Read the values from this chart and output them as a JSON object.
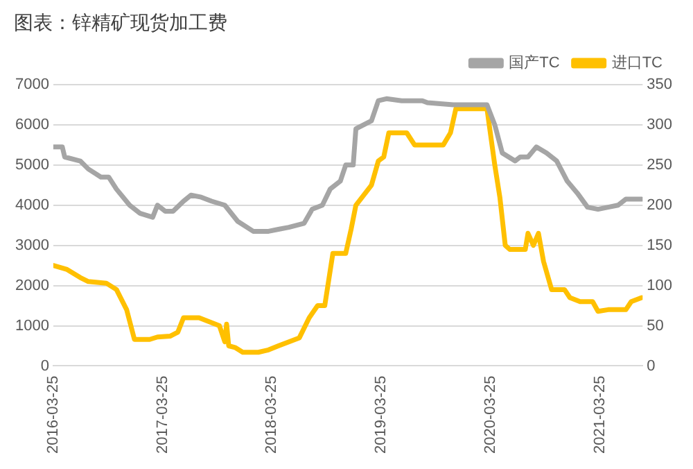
{
  "chart_data": {
    "type": "line",
    "title": "图表：锌精矿现货加工费",
    "legend": "top",
    "grid": "y",
    "marker": "none",
    "line_style": "solid",
    "xlim": [
      "2016-03-25",
      "2021-08-15"
    ],
    "xticks": [
      "2016-03-25",
      "2017-03-25",
      "2018-03-25",
      "2019-03-25",
      "2020-03-25",
      "2021-03-25"
    ],
    "ylim": [
      0,
      7000
    ],
    "yticks": [
      0,
      1000,
      2000,
      3000,
      4000,
      5000,
      6000,
      7000
    ],
    "y2lim": [
      0,
      350
    ],
    "y2ticks": [
      0,
      50,
      100,
      150,
      200,
      250,
      300,
      350
    ],
    "series": [
      {
        "name": "国产TC",
        "color": "#a5a5a5",
        "x": [
          "2016-03-25",
          "2016-04-24",
          "2016-05-02",
          "2016-06-23",
          "2016-07-20",
          "2016-08-31",
          "2016-09-26",
          "2016-10-22",
          "2016-12-05",
          "2017-01-08",
          "2017-02-20",
          "2017-03-08",
          "2017-04-03",
          "2017-04-29",
          "2017-06-03",
          "2017-06-28",
          "2017-08-01",
          "2017-09-05",
          "2017-10-19",
          "2017-12-01",
          "2018-01-22",
          "2018-03-14",
          "2018-04-16",
          "2018-05-21",
          "2018-07-11",
          "2018-08-07",
          "2018-09-10",
          "2018-10-06",
          "2018-11-09",
          "2018-11-27",
          "2018-12-22",
          "2018-12-31",
          "2019-02-21",
          "2019-03-16",
          "2019-04-12",
          "2019-06-02",
          "2019-08-10",
          "2019-08-27",
          "2019-11-21",
          "2020-03-13",
          "2020-04-08",
          "2020-05-03",
          "2020-06-15",
          "2020-07-02",
          "2020-07-28",
          "2020-08-25",
          "2020-09-28",
          "2020-11-01",
          "2020-12-06",
          "2021-01-09",
          "2021-02-12",
          "2021-03-19",
          "2021-04-22",
          "2021-05-25",
          "2021-06-20",
          "2021-08-12"
        ],
        "values": [
          5450,
          5450,
          5200,
          5100,
          4900,
          4700,
          4700,
          4400,
          4000,
          3800,
          3700,
          4000,
          3850,
          3850,
          4100,
          4250,
          4200,
          4100,
          4000,
          3600,
          3350,
          3350,
          3400,
          3450,
          3550,
          3900,
          4000,
          4400,
          4600,
          5000,
          5000,
          5900,
          6100,
          6600,
          6650,
          6600,
          6600,
          6550,
          6500,
          6500,
          6000,
          5300,
          5100,
          5200,
          5200,
          5450,
          5300,
          5100,
          4600,
          4300,
          3950,
          3900,
          3950,
          4000,
          4150,
          4150
        ]
      },
      {
        "name": "进口TC",
        "color": "#ffc000",
        "axis": "y2",
        "x": [
          "2016-03-25",
          "2016-05-10",
          "2016-06-23",
          "2016-07-20",
          "2016-09-18",
          "2016-10-22",
          "2016-11-25",
          "2016-12-21",
          "2017-02-10",
          "2017-03-08",
          "2017-04-19",
          "2017-05-15",
          "2017-06-03",
          "2017-07-25",
          "2017-08-28",
          "2017-10-01",
          "2017-10-19",
          "2017-10-25",
          "2017-11-01",
          "2017-11-22",
          "2017-12-18",
          "2018-02-08",
          "2018-03-14",
          "2018-04-16",
          "2018-05-21",
          "2018-06-25",
          "2018-07-28",
          "2018-08-25",
          "2018-09-18",
          "2018-10-15",
          "2018-11-27",
          "2018-12-15",
          "2018-12-31",
          "2019-02-21",
          "2019-03-16",
          "2019-04-03",
          "2019-04-20",
          "2019-06-19",
          "2019-07-15",
          "2019-10-19",
          "2019-11-12",
          "2019-11-30",
          "2020-03-13",
          "2020-04-08",
          "2020-04-25",
          "2020-05-13",
          "2020-05-28",
          "2020-07-19",
          "2020-07-28",
          "2020-08-15",
          "2020-09-01",
          "2020-09-18",
          "2020-10-15",
          "2020-11-27",
          "2020-12-15",
          "2021-01-18",
          "2021-03-01",
          "2021-03-19",
          "2021-04-22",
          "2021-06-20",
          "2021-07-08",
          "2021-08-12"
        ],
        "values": [
          125,
          120,
          110,
          105,
          103,
          95,
          70,
          33,
          33,
          36,
          37,
          42,
          60,
          60,
          55,
          50,
          30,
          52,
          25,
          23,
          17,
          17,
          20,
          25,
          30,
          35,
          60,
          75,
          75,
          140,
          140,
          170,
          200,
          225,
          255,
          260,
          290,
          290,
          275,
          275,
          290,
          320,
          320,
          250,
          210,
          150,
          145,
          145,
          165,
          150,
          165,
          130,
          95,
          95,
          85,
          80,
          80,
          68,
          70,
          70,
          80,
          85
        ]
      }
    ]
  }
}
